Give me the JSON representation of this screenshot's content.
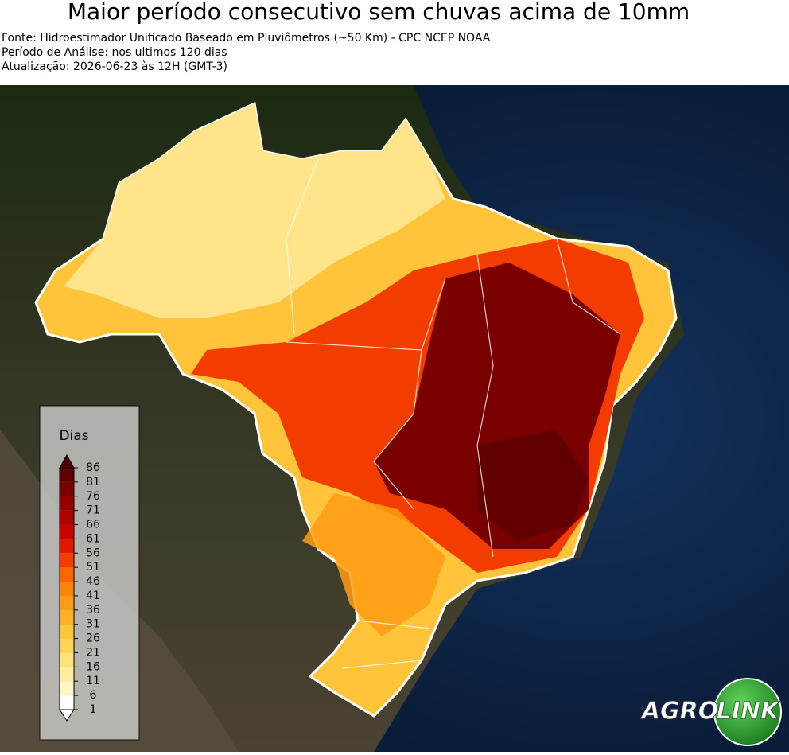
{
  "header": {
    "title": "Maior período consecutivo sem chuvas acima de 10mm",
    "lines": [
      "Fonte: Hidroestimador Unificado Baseado em Pluviômetros (~50 Km) - CPC NCEP NOAA",
      "Período de Análise: nos ultimos 120 dias",
      "Atualização: 2026-06-23 às 12H (GMT-3)"
    ]
  },
  "legend": {
    "title": "Dias",
    "ticks": [
      1,
      6,
      11,
      16,
      21,
      26,
      31,
      36,
      41,
      46,
      51,
      56,
      61,
      66,
      71,
      76,
      81,
      86
    ],
    "colors": [
      "#ffffff",
      "#fff6c4",
      "#ffeda0",
      "#ffe27a",
      "#ffd450",
      "#ffc638",
      "#ffb224",
      "#ff9c14",
      "#ff8406",
      "#ff6400",
      "#f23c00",
      "#e01a00",
      "#c80400",
      "#ae0000",
      "#940000",
      "#7a0000",
      "#620000"
    ],
    "under_color": "#ffffff",
    "over_color": "#4a0000"
  },
  "logo": {
    "left": "AGRO",
    "right": "LINK"
  }
}
